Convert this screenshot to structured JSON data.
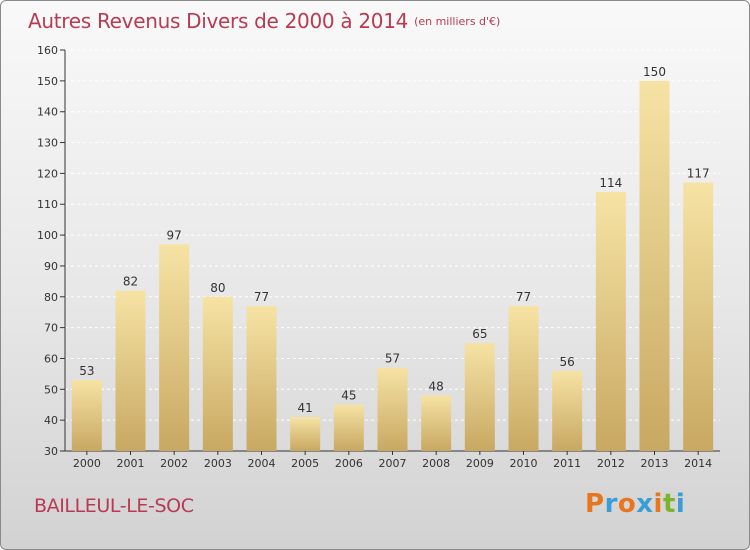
{
  "title": "Autres Revenus Divers de 2000 à 2014",
  "unit": "(en milliers d'€)",
  "city": "BAILLEUL-LE-SOC",
  "logo": {
    "text": "Proxiti",
    "colors": [
      "#e8761e",
      "#3a9dd6",
      "#e8761e",
      "#3a9dd6",
      "#e8761e",
      "#7ab52d",
      "#3a9dd6"
    ]
  },
  "colors": {
    "title": "#b93a52",
    "bar_top": "#f6e3a4",
    "bar_bottom": "#c8a862"
  },
  "chart_data": {
    "type": "bar",
    "categories": [
      "2000",
      "2001",
      "2002",
      "2003",
      "2004",
      "2005",
      "2006",
      "2007",
      "2008",
      "2009",
      "2010",
      "2011",
      "2012",
      "2013",
      "2014"
    ],
    "values": [
      53,
      82,
      97,
      80,
      77,
      41,
      45,
      57,
      48,
      65,
      77,
      56,
      114,
      150,
      117
    ],
    "ylim": [
      30,
      160
    ],
    "yticks": [
      30,
      40,
      50,
      60,
      70,
      80,
      90,
      100,
      110,
      120,
      130,
      140,
      150,
      160
    ],
    "title": "Autres Revenus Divers de 2000 à 2014",
    "xlabel": "",
    "ylabel": ""
  }
}
